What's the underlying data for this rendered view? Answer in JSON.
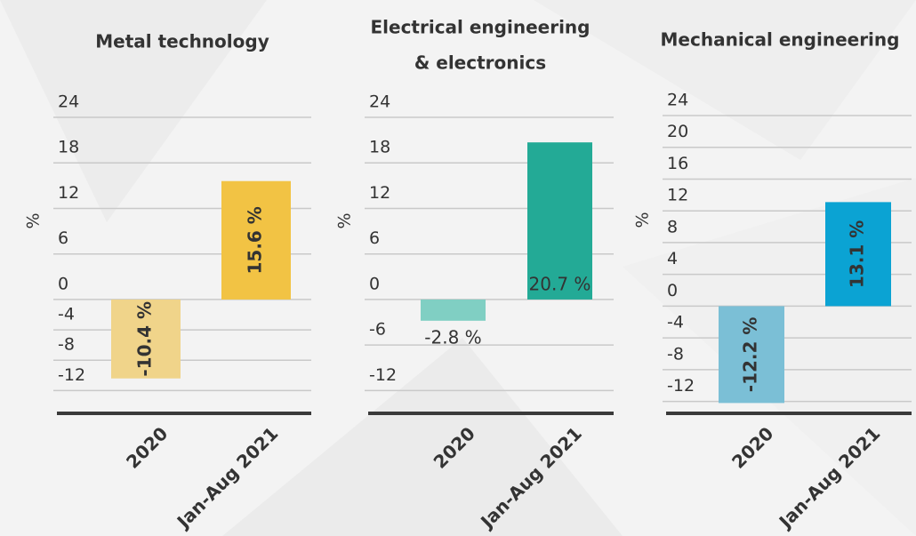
{
  "chart_data": [
    {
      "type": "bar",
      "title": [
        "Metal technology"
      ],
      "y_label": "%",
      "categories": [
        "2020",
        "Jan-Aug 2021"
      ],
      "values": [
        -10.4,
        15.6
      ],
      "value_labels": [
        "-10.4 %",
        "15.6 %"
      ],
      "colors": [
        "#f0d48a",
        "#f2c344"
      ],
      "ylim": [
        -15,
        24
      ],
      "yticks": [
        24,
        18,
        12,
        6,
        0,
        -4,
        -8,
        -12
      ],
      "grid": true
    },
    {
      "type": "bar",
      "title": [
        "Electrical engineering",
        "& electronics"
      ],
      "y_label": "%",
      "categories": [
        "2020",
        "Jan-Aug 2021"
      ],
      "values": [
        -2.8,
        20.7
      ],
      "value_labels": [
        "-2.8 %",
        "20.7 %"
      ],
      "colors": [
        "#80cfc3",
        "#23aa96"
      ],
      "ylim": [
        -15,
        24
      ],
      "yticks": [
        24,
        18,
        12,
        6,
        0,
        -6,
        -12
      ],
      "grid": true
    },
    {
      "type": "bar",
      "title": [
        "Mechanical engineering"
      ],
      "y_label": "%",
      "categories": [
        "2020",
        "Jan-Aug 2021"
      ],
      "values": [
        -12.2,
        13.1
      ],
      "value_labels": [
        "-12.2 %",
        "13.1 %"
      ],
      "colors": [
        "#7bbfd6",
        "#0ba3d3"
      ],
      "ylim": [
        -13.5,
        24
      ],
      "yticks": [
        24,
        20,
        16,
        12,
        8,
        4,
        0,
        -4,
        -8,
        -12
      ],
      "grid": true
    }
  ]
}
